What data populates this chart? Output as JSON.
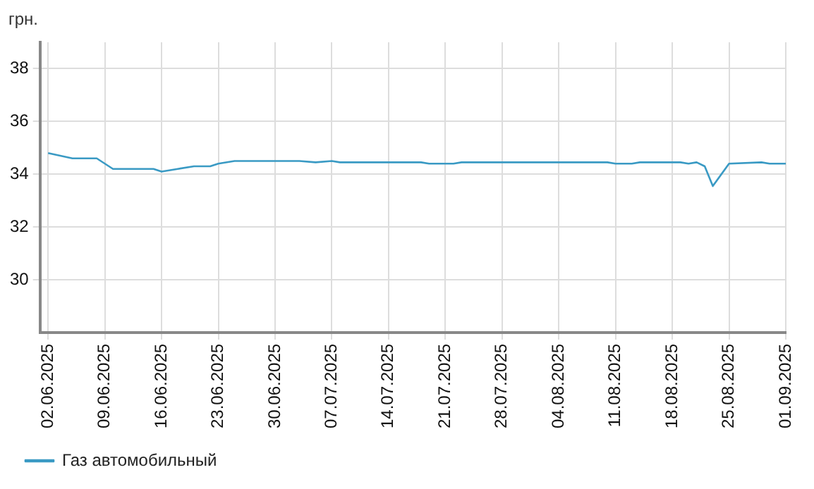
{
  "chart_data": {
    "type": "line",
    "ylabel": "грн.",
    "legend": "bottom left",
    "grid": true,
    "marker": "none",
    "line_style": "solid",
    "ylim": [
      28,
      39
    ],
    "yticks": [
      30,
      32,
      34,
      36,
      38
    ],
    "xlim": [
      "2025-06-01",
      "2025-09-01"
    ],
    "xticks": [
      {
        "value": "2025-06-02",
        "label": "02.06.2025"
      },
      {
        "value": "2025-06-09",
        "label": "09.06.2025"
      },
      {
        "value": "2025-06-16",
        "label": "16.06.2025"
      },
      {
        "value": "2025-06-23",
        "label": "23.06.2025"
      },
      {
        "value": "2025-06-30",
        "label": "30.06.2025"
      },
      {
        "value": "2025-07-07",
        "label": "07.07.2025"
      },
      {
        "value": "2025-07-14",
        "label": "14.07.2025"
      },
      {
        "value": "2025-07-21",
        "label": "21.07.2025"
      },
      {
        "value": "2025-07-28",
        "label": "28.07.2025"
      },
      {
        "value": "2025-08-04",
        "label": "04.08.2025"
      },
      {
        "value": "2025-08-11",
        "label": "11.08.2025"
      },
      {
        "value": "2025-08-18",
        "label": "18.08.2025"
      },
      {
        "value": "2025-08-25",
        "label": "25.08.2025"
      },
      {
        "value": "2025-09-01",
        "label": "01.09.2025"
      }
    ],
    "series": [
      {
        "name": "Газ автомобильный",
        "color": "#3a9ac4",
        "x": [
          "2025-06-02",
          "2025-06-05",
          "2025-06-08",
          "2025-06-10",
          "2025-06-15",
          "2025-06-16",
          "2025-06-18",
          "2025-06-20",
          "2025-06-22",
          "2025-06-23",
          "2025-06-25",
          "2025-07-03",
          "2025-07-05",
          "2025-07-07",
          "2025-07-08",
          "2025-07-18",
          "2025-07-19",
          "2025-07-22",
          "2025-07-23",
          "2025-08-10",
          "2025-08-11",
          "2025-08-13",
          "2025-08-14",
          "2025-08-19",
          "2025-08-20",
          "2025-08-21",
          "2025-08-22",
          "2025-08-23",
          "2025-08-25",
          "2025-08-29",
          "2025-08-30",
          "2025-09-01"
        ],
        "values": [
          34.8,
          34.6,
          34.6,
          34.2,
          34.2,
          34.1,
          34.2,
          34.3,
          34.3,
          34.4,
          34.5,
          34.5,
          34.45,
          34.5,
          34.45,
          34.45,
          34.4,
          34.4,
          34.45,
          34.45,
          34.4,
          34.4,
          34.45,
          34.45,
          34.4,
          34.45,
          34.3,
          33.55,
          34.4,
          34.45,
          34.4,
          34.4
        ]
      }
    ]
  }
}
